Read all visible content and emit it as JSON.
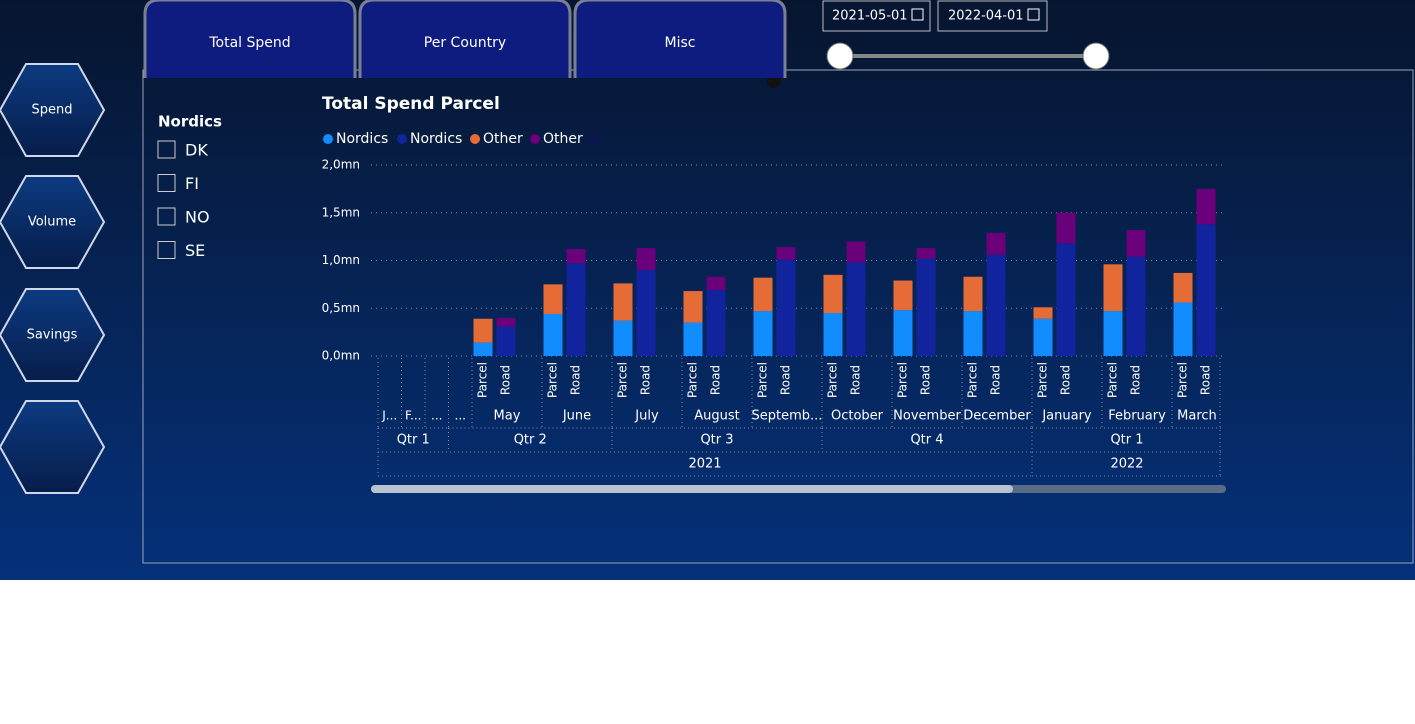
{
  "nav": [
    "Spend",
    "Volume",
    "Savings"
  ],
  "tabs": [
    "Total Spend",
    "Per Country",
    "Misc"
  ],
  "date_range": [
    "2021-05-01",
    "2022-04-01"
  ],
  "slicer": {
    "title": "Nordics",
    "options": [
      "DK",
      "FI",
      "NO",
      "SE"
    ]
  },
  "chart_data": {
    "type": "bar",
    "stacked": true,
    "title": "Total Spend Parcel",
    "months": [
      "J...",
      "F...",
      "...",
      "...",
      "May",
      "June",
      "July",
      "August",
      "Septemb...",
      "October",
      "November",
      "December",
      "January",
      "February",
      "March"
    ],
    "quarters": [
      "Qtr 1",
      "Qtr 2",
      "Qtr 3",
      "Qtr 4",
      "Qtr 1"
    ],
    "years": [
      "2021",
      "2022"
    ],
    "categories": [
      "Parcel",
      "Road",
      "Parcel",
      "Road",
      "Parcel",
      "Road",
      "Parcel",
      "Road",
      "Parcel",
      "Road",
      "Parcel",
      "Road",
      "Parcel",
      "Road",
      "Parcel",
      "Road",
      "Parcel",
      "Road",
      "Parcel",
      "Road",
      "Parcel",
      "Road"
    ],
    "series": [
      {
        "name": "Nordics",
        "color": "#118dff",
        "values": [
          0.14,
          null,
          0.44,
          null,
          0.37,
          null,
          0.35,
          null,
          0.47,
          null,
          0.45,
          null,
          0.48,
          null,
          0.47,
          null,
          0.39,
          null,
          0.47,
          null,
          0.56,
          null
        ]
      },
      {
        "name": "Nordics",
        "color": "#12239e",
        "values": [
          null,
          0.31,
          null,
          0.97,
          null,
          0.9,
          null,
          0.69,
          null,
          1.01,
          null,
          0.98,
          null,
          1.02,
          null,
          1.06,
          null,
          1.18,
          null,
          1.04,
          null,
          1.38
        ]
      },
      {
        "name": "Other",
        "color": "#e66c37",
        "values": [
          0.25,
          null,
          0.31,
          null,
          0.39,
          null,
          0.33,
          null,
          0.35,
          null,
          0.4,
          null,
          0.31,
          null,
          0.36,
          null,
          0.12,
          null,
          0.49,
          null,
          0.31,
          null
        ]
      },
      {
        "name": "Other",
        "color": "#6b007b",
        "values": [
          null,
          0.09,
          null,
          0.15,
          null,
          0.23,
          null,
          0.14,
          null,
          0.13,
          null,
          0.22,
          null,
          0.11,
          null,
          0.23,
          null,
          0.32,
          null,
          0.28,
          null,
          0.37
        ]
      }
    ],
    "ylim": [
      0,
      2
    ],
    "yticks": [
      {
        "value": 0,
        "label": "0,0mn"
      },
      {
        "value": 0.5,
        "label": "0,5mn"
      },
      {
        "value": 1,
        "label": "1,0mn"
      },
      {
        "value": 1.5,
        "label": "1,5mn"
      },
      {
        "value": 2,
        "label": "2,0mn"
      }
    ],
    "grid": true
  }
}
